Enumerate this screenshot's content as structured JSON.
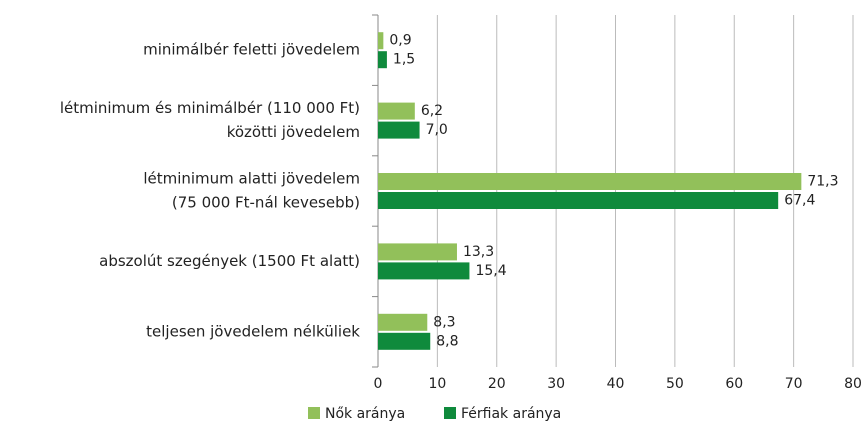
{
  "chart_data": {
    "type": "bar",
    "orientation": "horizontal",
    "categories": [
      [
        "minimálbér feletti jövedelem"
      ],
      [
        "létminimum és minimálbér (110 000 Ft)",
        "közötti jövedelem"
      ],
      [
        "létminimum alatti jövedelem",
        "(75 000 Ft-nál kevesebb)"
      ],
      [
        "abszolút szegények (1500 Ft alatt)"
      ],
      [
        "teljesen jövedelem nélküliek"
      ]
    ],
    "series": [
      {
        "name": "Nők aránya",
        "color": "#92c05a",
        "values": [
          0.9,
          6.2,
          71.3,
          13.3,
          8.3
        ],
        "value_labels": [
          "0,9",
          "6,2",
          "71,3",
          "13,3",
          "8,3"
        ]
      },
      {
        "name": "Férfiak aránya",
        "color": "#0f8a3c",
        "values": [
          1.5,
          7.0,
          67.4,
          15.4,
          8.8
        ],
        "value_labels": [
          "1,5",
          "7,0",
          "67,4",
          "15,4",
          "8,8"
        ]
      }
    ],
    "xlim": [
      0,
      80
    ],
    "xticks": [
      0,
      10,
      20,
      30,
      40,
      50,
      60,
      70,
      80
    ],
    "grid": true,
    "legend": "bottom"
  }
}
